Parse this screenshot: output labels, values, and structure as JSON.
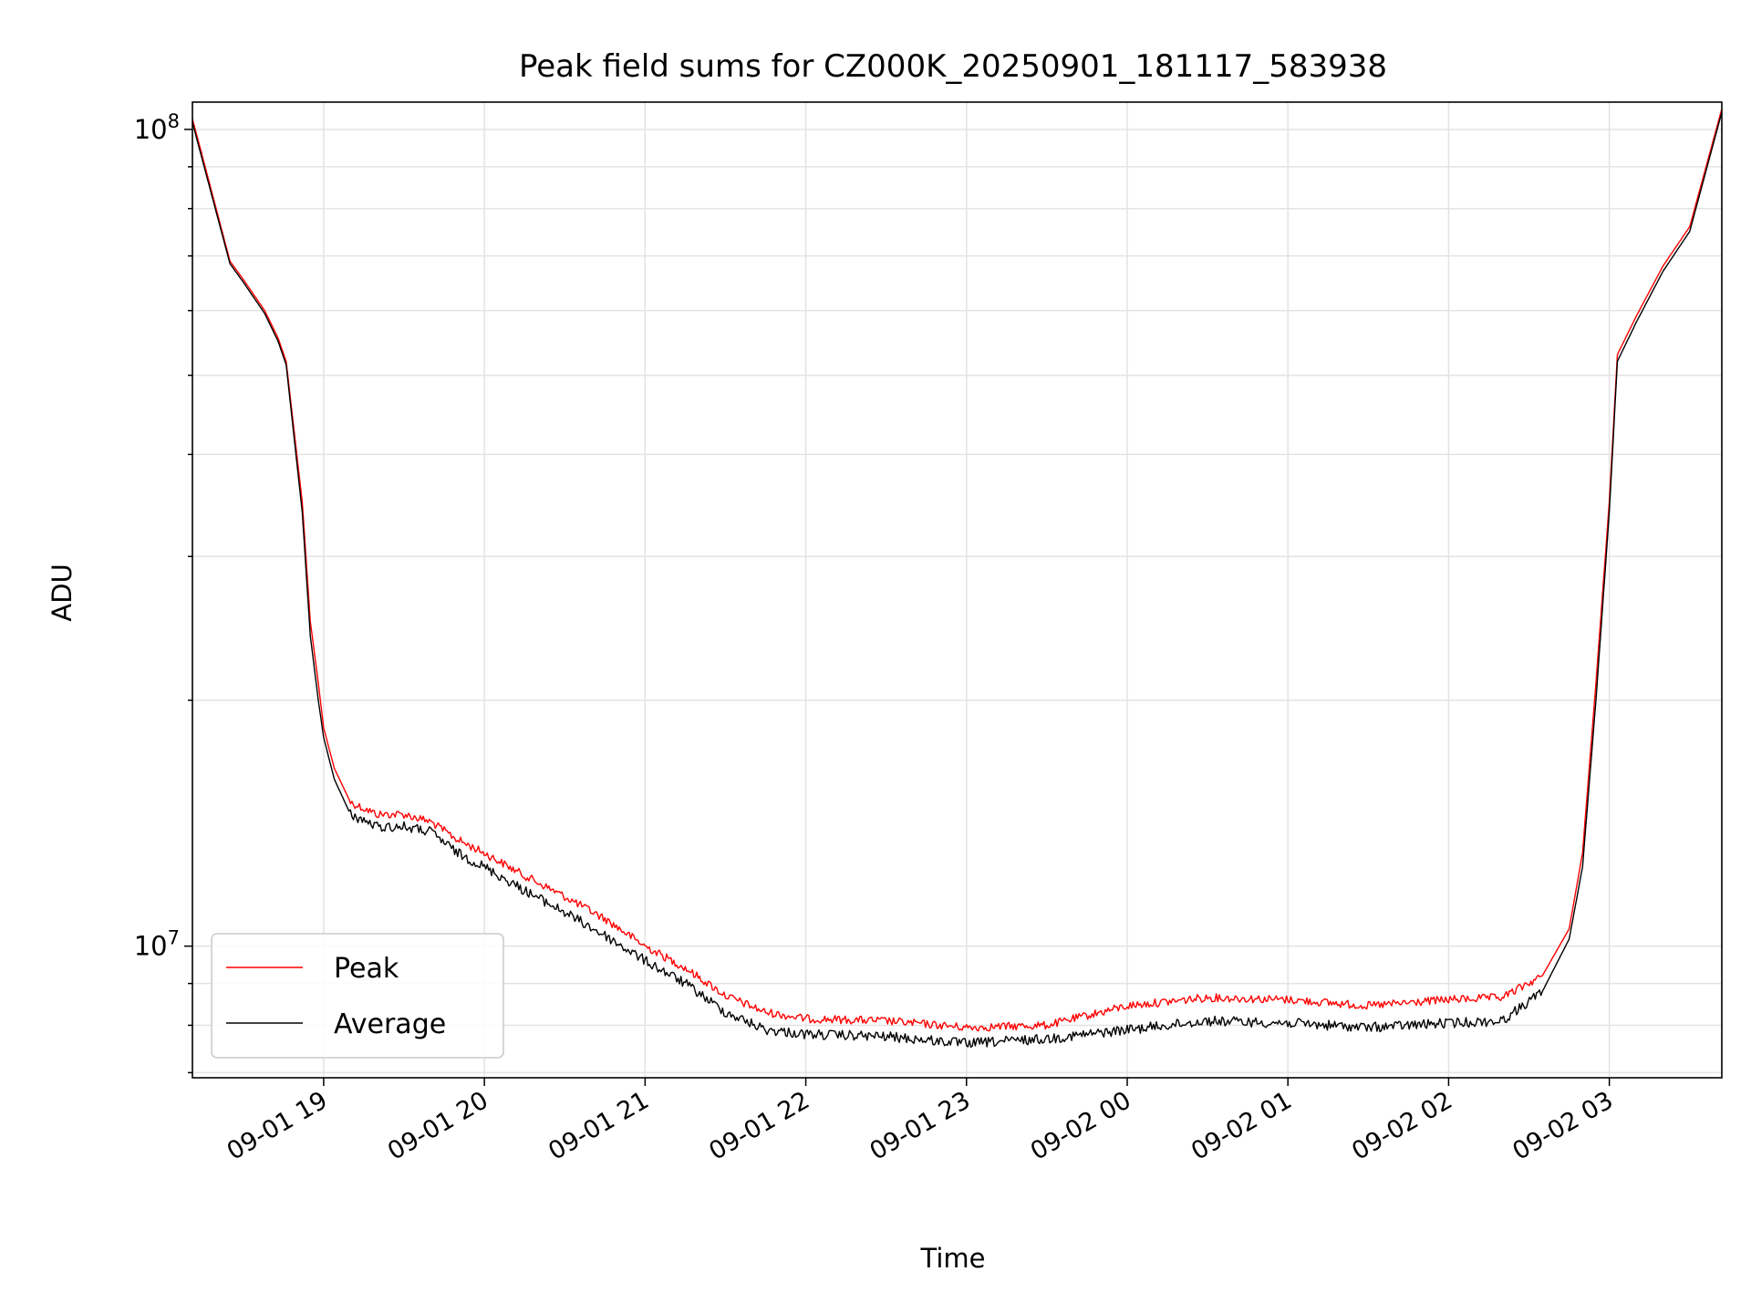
{
  "chart_data": {
    "type": "line",
    "title": "Peak field sums for CZ000K_20250901_181117_583938",
    "xlabel": "Time",
    "ylabel": "ADU",
    "yscale": "log",
    "ylim": [
      6900000,
      108000000
    ],
    "xlim": [
      "2025-09-01 18:11",
      "2025-09-02 03:42"
    ],
    "grid": true,
    "legend_position": "lower-left",
    "x_ticks": [
      {
        "time": "2025-09-01 19:00",
        "label": "09-01 19"
      },
      {
        "time": "2025-09-01 20:00",
        "label": "09-01 20"
      },
      {
        "time": "2025-09-01 21:00",
        "label": "09-01 21"
      },
      {
        "time": "2025-09-01 22:00",
        "label": "09-01 22"
      },
      {
        "time": "2025-09-01 23:00",
        "label": "09-01 23"
      },
      {
        "time": "2025-09-02 00:00",
        "label": "09-02 00"
      },
      {
        "time": "2025-09-02 01:00",
        "label": "09-02 01"
      },
      {
        "time": "2025-09-02 02:00",
        "label": "09-02 02"
      },
      {
        "time": "2025-09-02 03:00",
        "label": "09-02 03"
      }
    ],
    "y_ticks": [
      {
        "value": 10000000,
        "base": "10",
        "exp": "7"
      },
      {
        "value": 100000000,
        "base": "10",
        "exp": "8"
      }
    ],
    "series": [
      {
        "name": "Peak",
        "color": "#ff0000",
        "x": [
          "2025-09-01 18:11",
          "2025-09-01 18:15",
          "2025-09-01 18:25",
          "2025-09-01 18:30",
          "2025-09-01 18:38",
          "2025-09-01 18:43",
          "2025-09-01 18:46",
          "2025-09-01 18:52",
          "2025-09-01 18:55",
          "2025-09-01 18:58",
          "2025-09-01 19:00",
          "2025-09-01 19:04",
          "2025-09-01 19:10",
          "2025-09-01 19:20",
          "2025-09-01 19:30",
          "2025-09-01 19:40",
          "2025-09-01 19:50",
          "2025-09-01 20:00",
          "2025-09-01 20:15",
          "2025-09-01 20:30",
          "2025-09-01 20:45",
          "2025-09-01 21:00",
          "2025-09-01 21:15",
          "2025-09-01 21:30",
          "2025-09-01 21:45",
          "2025-09-01 22:00",
          "2025-09-01 22:30",
          "2025-09-01 23:00",
          "2025-09-01 23:30",
          "2025-09-02 00:00",
          "2025-09-02 00:30",
          "2025-09-02 01:00",
          "2025-09-02 01:30",
          "2025-09-02 02:00",
          "2025-09-02 02:20",
          "2025-09-02 02:35",
          "2025-09-02 02:45",
          "2025-09-02 02:50",
          "2025-09-02 02:55",
          "2025-09-02 03:00",
          "2025-09-02 03:03",
          "2025-09-02 03:10",
          "2025-09-02 03:20",
          "2025-09-02 03:30",
          "2025-09-02 03:42"
        ],
        "values": [
          103000000,
          92000000,
          69000000,
          65500000,
          60000000,
          55500000,
          52000000,
          35000000,
          25000000,
          21000000,
          18500000,
          16500000,
          15000000,
          14500000,
          14500000,
          14200000,
          13500000,
          13000000,
          12200000,
          11500000,
          10800000,
          10000000,
          9400000,
          8700000,
          8300000,
          8150000,
          8100000,
          7950000,
          8000000,
          8450000,
          8650000,
          8600000,
          8450000,
          8600000,
          8650000,
          9200000,
          10500000,
          13000000,
          21000000,
          35000000,
          53000000,
          59000000,
          68000000,
          76000000,
          106000000
        ]
      },
      {
        "name": "Average",
        "color": "#000000",
        "x": [
          "2025-09-01 18:11",
          "2025-09-01 18:15",
          "2025-09-01 18:25",
          "2025-09-01 18:30",
          "2025-09-01 18:38",
          "2025-09-01 18:43",
          "2025-09-01 18:46",
          "2025-09-01 18:52",
          "2025-09-01 18:55",
          "2025-09-01 18:58",
          "2025-09-01 19:00",
          "2025-09-01 19:04",
          "2025-09-01 19:10",
          "2025-09-01 19:20",
          "2025-09-01 19:30",
          "2025-09-01 19:40",
          "2025-09-01 19:50",
          "2025-09-01 20:00",
          "2025-09-01 20:15",
          "2025-09-01 20:30",
          "2025-09-01 20:45",
          "2025-09-01 21:00",
          "2025-09-01 21:15",
          "2025-09-01 21:30",
          "2025-09-01 21:45",
          "2025-09-01 22:00",
          "2025-09-01 22:30",
          "2025-09-01 23:00",
          "2025-09-01 23:30",
          "2025-09-02 00:00",
          "2025-09-02 00:30",
          "2025-09-02 01:00",
          "2025-09-02 01:30",
          "2025-09-02 02:00",
          "2025-09-02 02:20",
          "2025-09-02 02:35",
          "2025-09-02 02:45",
          "2025-09-02 02:50",
          "2025-09-02 02:55",
          "2025-09-02 03:00",
          "2025-09-02 03:03",
          "2025-09-02 03:10",
          "2025-09-02 03:20",
          "2025-09-02 03:30",
          "2025-09-02 03:42"
        ],
        "values": [
          102000000,
          91000000,
          68500000,
          65000000,
          59500000,
          55000000,
          51500000,
          34000000,
          24000000,
          20000000,
          18000000,
          16000000,
          14500000,
          14000000,
          14000000,
          13800000,
          13000000,
          12500000,
          11700000,
          11000000,
          10300000,
          9600000,
          9000000,
          8300000,
          7900000,
          7800000,
          7750000,
          7600000,
          7700000,
          7900000,
          8100000,
          8050000,
          7950000,
          8050000,
          8100000,
          8800000,
          10200000,
          12500000,
          20000000,
          34000000,
          52000000,
          58000000,
          67000000,
          75000000,
          105000000
        ]
      }
    ]
  }
}
